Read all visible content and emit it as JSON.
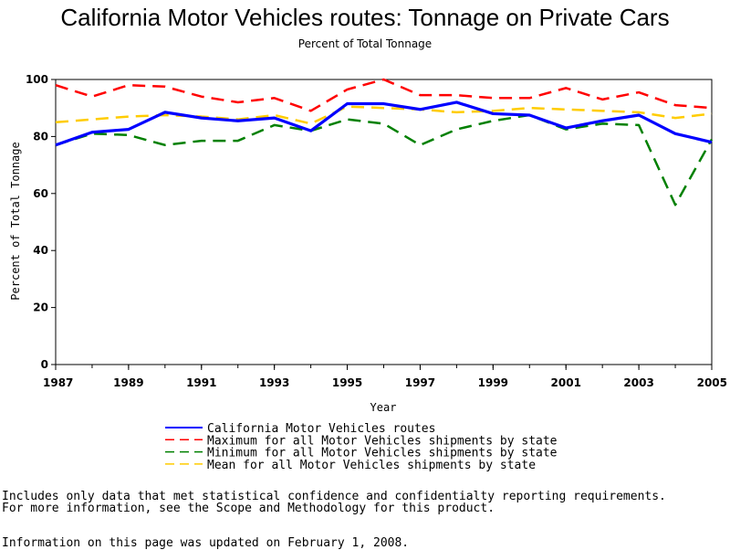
{
  "chart_data": {
    "type": "line",
    "title": "California Motor Vehicles routes: Tonnage on Private Cars",
    "subtitle": "Percent of Total Tonnage",
    "xlabel": "Year",
    "ylabel": "Percent of Total Tonnage",
    "xlim": [
      1987,
      2005
    ],
    "ylim": [
      0,
      100
    ],
    "x_ticks": [
      "1987",
      "1989",
      "1991",
      "1993",
      "1995",
      "1997",
      "1999",
      "2001",
      "2003",
      "2005"
    ],
    "y_ticks": [
      "0",
      "20",
      "40",
      "60",
      "80",
      "100"
    ],
    "x": [
      1987,
      1988,
      1989,
      1990,
      1991,
      1992,
      1993,
      1994,
      1995,
      1996,
      1997,
      1998,
      1999,
      2000,
      2001,
      2002,
      2003,
      2004,
      2005
    ],
    "legend_placement": "bottom",
    "grid": false,
    "series": [
      {
        "name": "California Motor Vehicles routes",
        "color": "#0000ff",
        "dashed": false,
        "values": [
          77,
          81.5,
          82.5,
          88.5,
          86.5,
          85.5,
          86.5,
          82,
          91.5,
          91.5,
          89.5,
          92,
          88,
          87.5,
          83,
          85.5,
          87.5,
          81,
          78
        ]
      },
      {
        "name": "Maximum for all Motor Vehicles shipments by state",
        "color": "#ff0000",
        "dashed": true,
        "values": [
          98,
          94,
          98,
          97.5,
          94,
          92,
          93.5,
          89,
          96.5,
          100,
          94.5,
          94.5,
          93.5,
          93.5,
          97,
          93,
          95.5,
          91,
          90
        ]
      },
      {
        "name": "Minimum for all Motor Vehicles shipments by state",
        "color": "#008000",
        "dashed": true,
        "values": [
          77,
          81,
          80.5,
          77,
          78.5,
          78.5,
          84,
          82,
          86,
          84.5,
          77,
          82.5,
          85.5,
          87.5,
          82.5,
          84.5,
          84,
          56,
          79
        ]
      },
      {
        "name": "Mean for all Motor Vehicles shipments by state",
        "color": "#ffcc00",
        "dashed": true,
        "values": [
          85,
          86,
          87,
          87.5,
          87,
          86,
          87.5,
          84.5,
          90.5,
          90,
          89.5,
          88.5,
          89,
          90,
          89.5,
          89,
          88.5,
          86.5,
          88
        ]
      }
    ]
  },
  "notes": [
    "Includes only data that met statistical confidence and confidentialty reporting requirements.",
    "For more information, see the Scope and Methodology for this product.",
    "Information on this page was updated on February 1, 2008."
  ]
}
